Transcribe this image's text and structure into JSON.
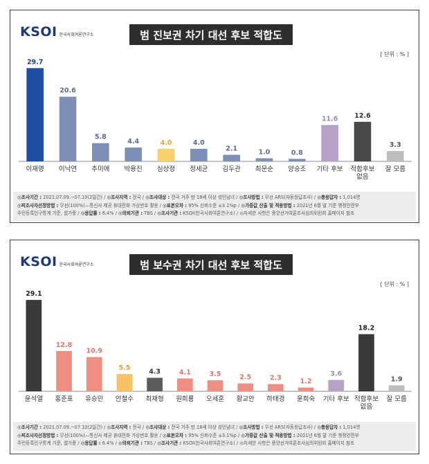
{
  "logo": {
    "mark": "KSOI",
    "subtitle": "한국사회여론연구소"
  },
  "chart_data": [
    {
      "type": "bar",
      "title": "범 진보권 차기 대선 후보 적합도",
      "unit": "[ 단위 : % ]",
      "categories": [
        "이재명",
        "이낙연",
        "추미애",
        "박용진",
        "심상정",
        "정세균",
        "김두관",
        "최문순",
        "양승조",
        "기타 후보",
        "적합후보\n없음",
        "잘 모름"
      ],
      "values": [
        29.7,
        20.6,
        5.8,
        4.4,
        4.0,
        4.0,
        2.1,
        1.0,
        0.8,
        11.6,
        12.6,
        3.3
      ],
      "bar_colors": [
        "#1f4fa3",
        "#7d8fb5",
        "#7d8fb5",
        "#7d8fb5",
        "#f7cf6b",
        "#7d8fb5",
        "#7d8fb5",
        "#7d8fb5",
        "#7d8fb5",
        "#b7a1c7",
        "#4a4a4a",
        "#bdbdbd"
      ],
      "label_colors": [
        "#1f3f86",
        "#5a6b92",
        "#5a6b92",
        "#5a6b92",
        "#e0a82e",
        "#5a6b92",
        "#5a6b92",
        "#5a6b92",
        "#5a6b92",
        "#9c86b0",
        "#333333",
        "#555555"
      ],
      "ylim": [
        0,
        30
      ]
    },
    {
      "type": "bar",
      "title": "범 보수권 차기 대선 후보 적합도",
      "unit": "[ 단위 : % ]",
      "categories": [
        "윤석열",
        "홍준표",
        "유승민",
        "안철수",
        "최재형",
        "원희룡",
        "오세훈",
        "황교안",
        "하태경",
        "윤희숙",
        "기타 후보",
        "적합후보\n없음",
        "잘 모름"
      ],
      "values": [
        29.1,
        12.8,
        10.9,
        5.5,
        4.3,
        4.1,
        3.5,
        2.5,
        2.3,
        1.2,
        3.6,
        18.2,
        1.9
      ],
      "bar_colors": [
        "#3a3a3a",
        "#ef8f84",
        "#ef8f84",
        "#f7c267",
        "#5c5c5c",
        "#ef8f84",
        "#ef8f84",
        "#ef8f84",
        "#ef8f84",
        "#ef8f84",
        "#b7a1c7",
        "#3a3a3a",
        "#bdbdbd"
      ],
      "label_colors": [
        "#222222",
        "#e0736a",
        "#e0736a",
        "#e0a02e",
        "#333333",
        "#e0736a",
        "#e0736a",
        "#e0736a",
        "#e0736a",
        "#e0736a",
        "#9c86b0",
        "#222222",
        "#555555"
      ],
      "ylim": [
        0,
        30
      ]
    }
  ],
  "footer": {
    "line1": [
      {
        "label": "◎조사기간 :",
        "text": "2021.07.09.~07.10(2일간)"
      },
      {
        "label": "◎조사지역 :",
        "text": "전국"
      },
      {
        "label": "◎조사대상 :",
        "text": "전국 거주 만 18세 이상 성인남녀"
      },
      {
        "label": "◎조사방법 :",
        "text": "무선 ARS(자동응답조사)"
      },
      {
        "label": "◎총응답자 :",
        "text": "1,014명"
      }
    ],
    "line2": [
      {
        "label": "◎피조사자선정방법 :",
        "text": "무선(100%)—통신사 제공 휴대전화 가상번호 활용"
      },
      {
        "label": "◎표본오차 :",
        "text": "95% 신뢰수준 ±3.1%p"
      },
      {
        "label": "◎가중값 산출 및 적용방법 :",
        "text": "2021년 6월 말 기준 행정안전부"
      }
    ],
    "line3": [
      {
        "label": "",
        "text": "주민등록인구통계 기준, 셀가중"
      },
      {
        "label": "◎응답률 :",
        "text": "6.4%"
      },
      {
        "label": "◎의뢰기관 :",
        "text": "TBS"
      },
      {
        "label": "◎조사기관 :",
        "text": "KSOI(한국사회여론연구소)"
      },
      {
        "label": "",
        "text": "◎자세한 사항은 중앙선거여론조사심의위원회 홈페이지 참조"
      }
    ]
  }
}
